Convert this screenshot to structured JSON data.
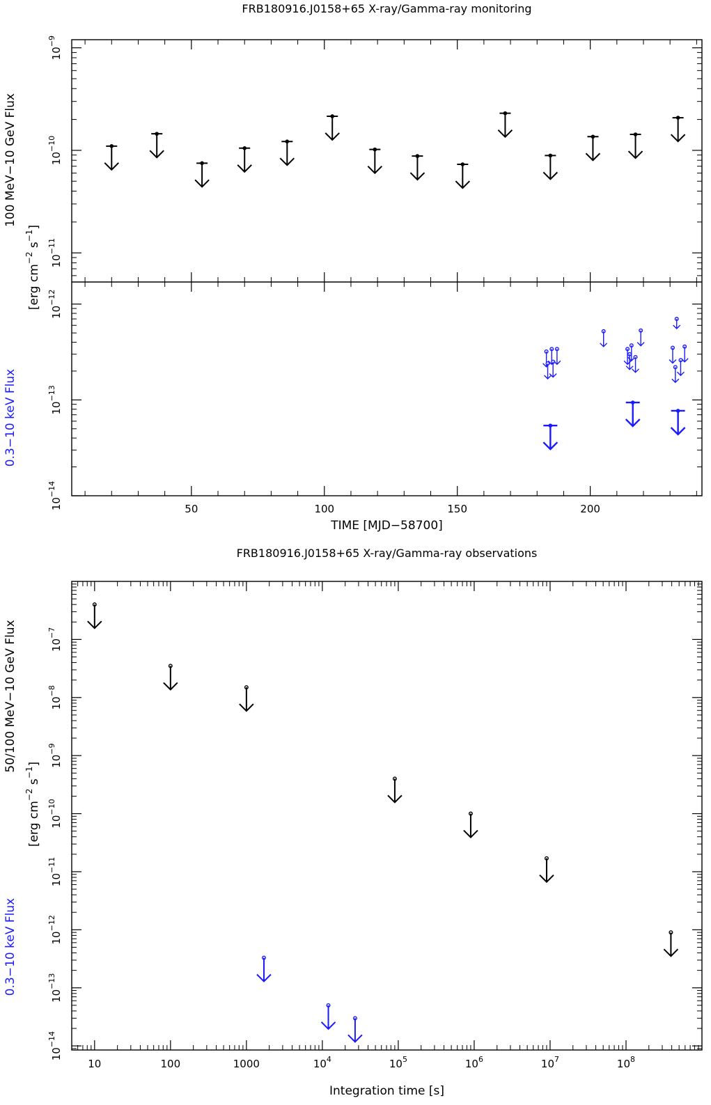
{
  "colors": {
    "gamma": "#000000",
    "xray": "#1a1aff"
  },
  "chart_data": [
    {
      "type": "scatter",
      "title": "FRB180916.J0158+65 X-ray/Gamma-ray monitoring",
      "xlabel": "TIME [MJD−58700]",
      "xlim": [
        5,
        242
      ],
      "x_ticks": [
        "50",
        "100",
        "150",
        "200"
      ],
      "panels": [
        {
          "ylabel": "100 MeV−10 GeV Flux",
          "y_scale": "log",
          "ylim": [
            5.2e-12,
            1.2e-09
          ],
          "y_ticks": [
            "10",
            "10",
            "10"
          ],
          "y_tick_exponents": [
            "−9",
            "−10",
            "−11"
          ],
          "series": [
            {
              "kind": "upper_limit",
              "x": [
                20,
                37,
                54,
                70,
                86,
                103,
                119,
                135,
                152,
                168,
                185,
                201,
                217,
                233
              ],
              "y": [
                1.1e-10,
                1.45e-10,
                7.5e-11,
                1.05e-10,
                1.22e-10,
                2.15e-10,
                1.02e-10,
                8.8e-11,
                7.3e-11,
                2.3e-10,
                8.9e-11,
                1.36e-10,
                1.43e-10,
                2.08e-10
              ]
            }
          ]
        },
        {
          "ylabel": "0.3−10 keV Flux",
          "y_scale": "log",
          "ylim": [
            1e-14,
            1.7e-12
          ],
          "y_ticks": [
            "10",
            "10",
            "10"
          ],
          "y_tick_exponents": [
            "−12",
            "−13",
            "−14"
          ],
          "series": [
            {
              "kind": "upper_limit_large",
              "x": [
                185,
                216,
                233
              ],
              "y": [
                5.4e-14,
                9.4e-14,
                7.7e-14
              ]
            },
            {
              "kind": "upper_limit_small",
              "x": [
                183.5,
                185.5,
                187.5,
                184,
                186,
                205,
                214,
                215.5,
                217,
                219,
                214.8,
                231,
                235.5,
                232,
                234
              ],
              "y": [
                3.2e-13,
                3.4e-13,
                3.4e-13,
                2.4e-13,
                2.5e-13,
                5.2e-13,
                3.4e-13,
                3.7e-13,
                2.8e-13,
                5.3e-13,
                3e-13,
                3.5e-13,
                3.6e-13,
                2.2e-13,
                2.6e-13
              ]
            },
            {
              "kind": "upper_limit_tiny",
              "x": [
                232.5
              ],
              "y": [
                7e-13
              ]
            }
          ]
        }
      ],
      "shared_ylabel": "[erg cm−2 s−1]"
    },
    {
      "type": "scatter",
      "title": "FRB180916.J0158+65 X-ray/Gamma-ray observations",
      "xlabel": "Integration time [s]",
      "x_scale": "log",
      "xlim": [
        5,
        1000000000.0
      ],
      "x_ticks": [
        "10",
        "100",
        "1000",
        "10",
        "10",
        "10",
        "10",
        "10"
      ],
      "x_tick_exponents": [
        "",
        "",
        "",
        "4",
        "5",
        "6",
        "7",
        "8"
      ],
      "ylim": [
        8.5e-15,
        1e-06
      ],
      "y_scale": "log",
      "y_ticks": [
        "10",
        "10",
        "10",
        "10",
        "10",
        "10",
        "10",
        "10"
      ],
      "y_tick_exponents": [
        "−7",
        "−8",
        "−9",
        "−10",
        "−11",
        "−12",
        "−13",
        "−14"
      ],
      "ylabel_gamma": "50/100 MeV−10 GeV Flux",
      "ylabel_units": "[erg cm−2 s−1]",
      "ylabel_xray": "0.3−10 keV Flux",
      "series": [
        {
          "kind": "gamma_upper_limit",
          "x": [
            10,
            100,
            1000,
            90000,
            900000,
            9000000,
            390000000
          ],
          "y": [
            4e-07,
            3.5e-08,
            1.5e-08,
            4e-10,
            1e-10,
            1.7e-11,
            9e-13
          ]
        },
        {
          "kind": "xray_upper_limit",
          "x": [
            1700,
            12000,
            27000
          ],
          "y": [
            3.3e-13,
            5e-14,
            3e-14
          ]
        }
      ]
    }
  ]
}
